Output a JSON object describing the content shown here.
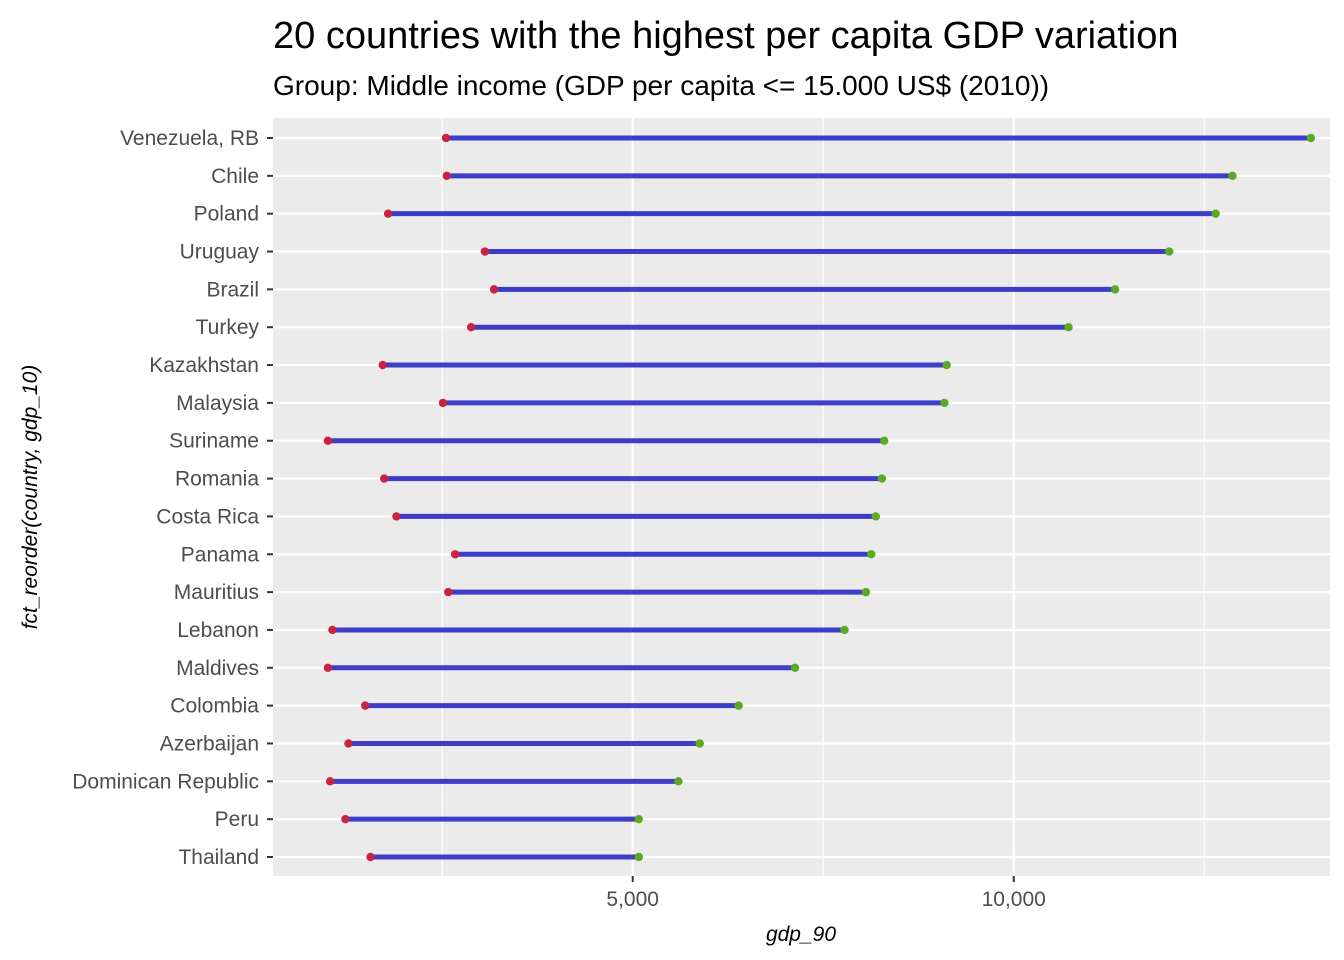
{
  "chart_data": {
    "type": "dumbbell",
    "title": "20 countries with the highest per capita GDP variation",
    "subtitle": "Group: Middle income (GDP per capita <= 15.000 US$ (2010))",
    "xlabel": "gdp_90",
    "ylabel": "fct_reorder(country, gdp_10)",
    "x_ticks": [
      {
        "value": 5000,
        "label": "5,000"
      },
      {
        "value": 10000,
        "label": "10,000"
      }
    ],
    "xlim": [
      280,
      14150
    ],
    "grid": true,
    "colors": {
      "start_point": "#c8243f",
      "end_point": "#5aaa22",
      "segment": "#3f3dc8",
      "panel_bg": "#ebebeb",
      "grid": "#ffffff"
    },
    "rows": [
      {
        "country": "Venezuela, RB",
        "gdp_90": 2550,
        "gdp_10": 13900
      },
      {
        "country": "Chile",
        "gdp_90": 2560,
        "gdp_10": 12870
      },
      {
        "country": "Poland",
        "gdp_90": 1790,
        "gdp_10": 12650
      },
      {
        "country": "Uruguay",
        "gdp_90": 3060,
        "gdp_10": 12040
      },
      {
        "country": "Brazil",
        "gdp_90": 3180,
        "gdp_10": 11330
      },
      {
        "country": "Turkey",
        "gdp_90": 2880,
        "gdp_10": 10720
      },
      {
        "country": "Kazakhstan",
        "gdp_90": 1720,
        "gdp_10": 9120
      },
      {
        "country": "Malaysia",
        "gdp_90": 2510,
        "gdp_10": 9090
      },
      {
        "country": "Suriname",
        "gdp_90": 1000,
        "gdp_10": 8300
      },
      {
        "country": "Romania",
        "gdp_90": 1740,
        "gdp_10": 8270
      },
      {
        "country": "Costa Rica",
        "gdp_90": 1900,
        "gdp_10": 8190
      },
      {
        "country": "Panama",
        "gdp_90": 2670,
        "gdp_10": 8130
      },
      {
        "country": "Mauritius",
        "gdp_90": 2580,
        "gdp_10": 8060
      },
      {
        "country": "Lebanon",
        "gdp_90": 1060,
        "gdp_10": 7780
      },
      {
        "country": "Maldives",
        "gdp_90": 1000,
        "gdp_10": 7130
      },
      {
        "country": "Colombia",
        "gdp_90": 1490,
        "gdp_10": 6390
      },
      {
        "country": "Azerbaijan",
        "gdp_90": 1270,
        "gdp_10": 5880
      },
      {
        "country": "Dominican Republic",
        "gdp_90": 1030,
        "gdp_10": 5600
      },
      {
        "country": "Peru",
        "gdp_90": 1230,
        "gdp_10": 5080
      },
      {
        "country": "Thailand",
        "gdp_90": 1560,
        "gdp_10": 5080
      }
    ]
  }
}
